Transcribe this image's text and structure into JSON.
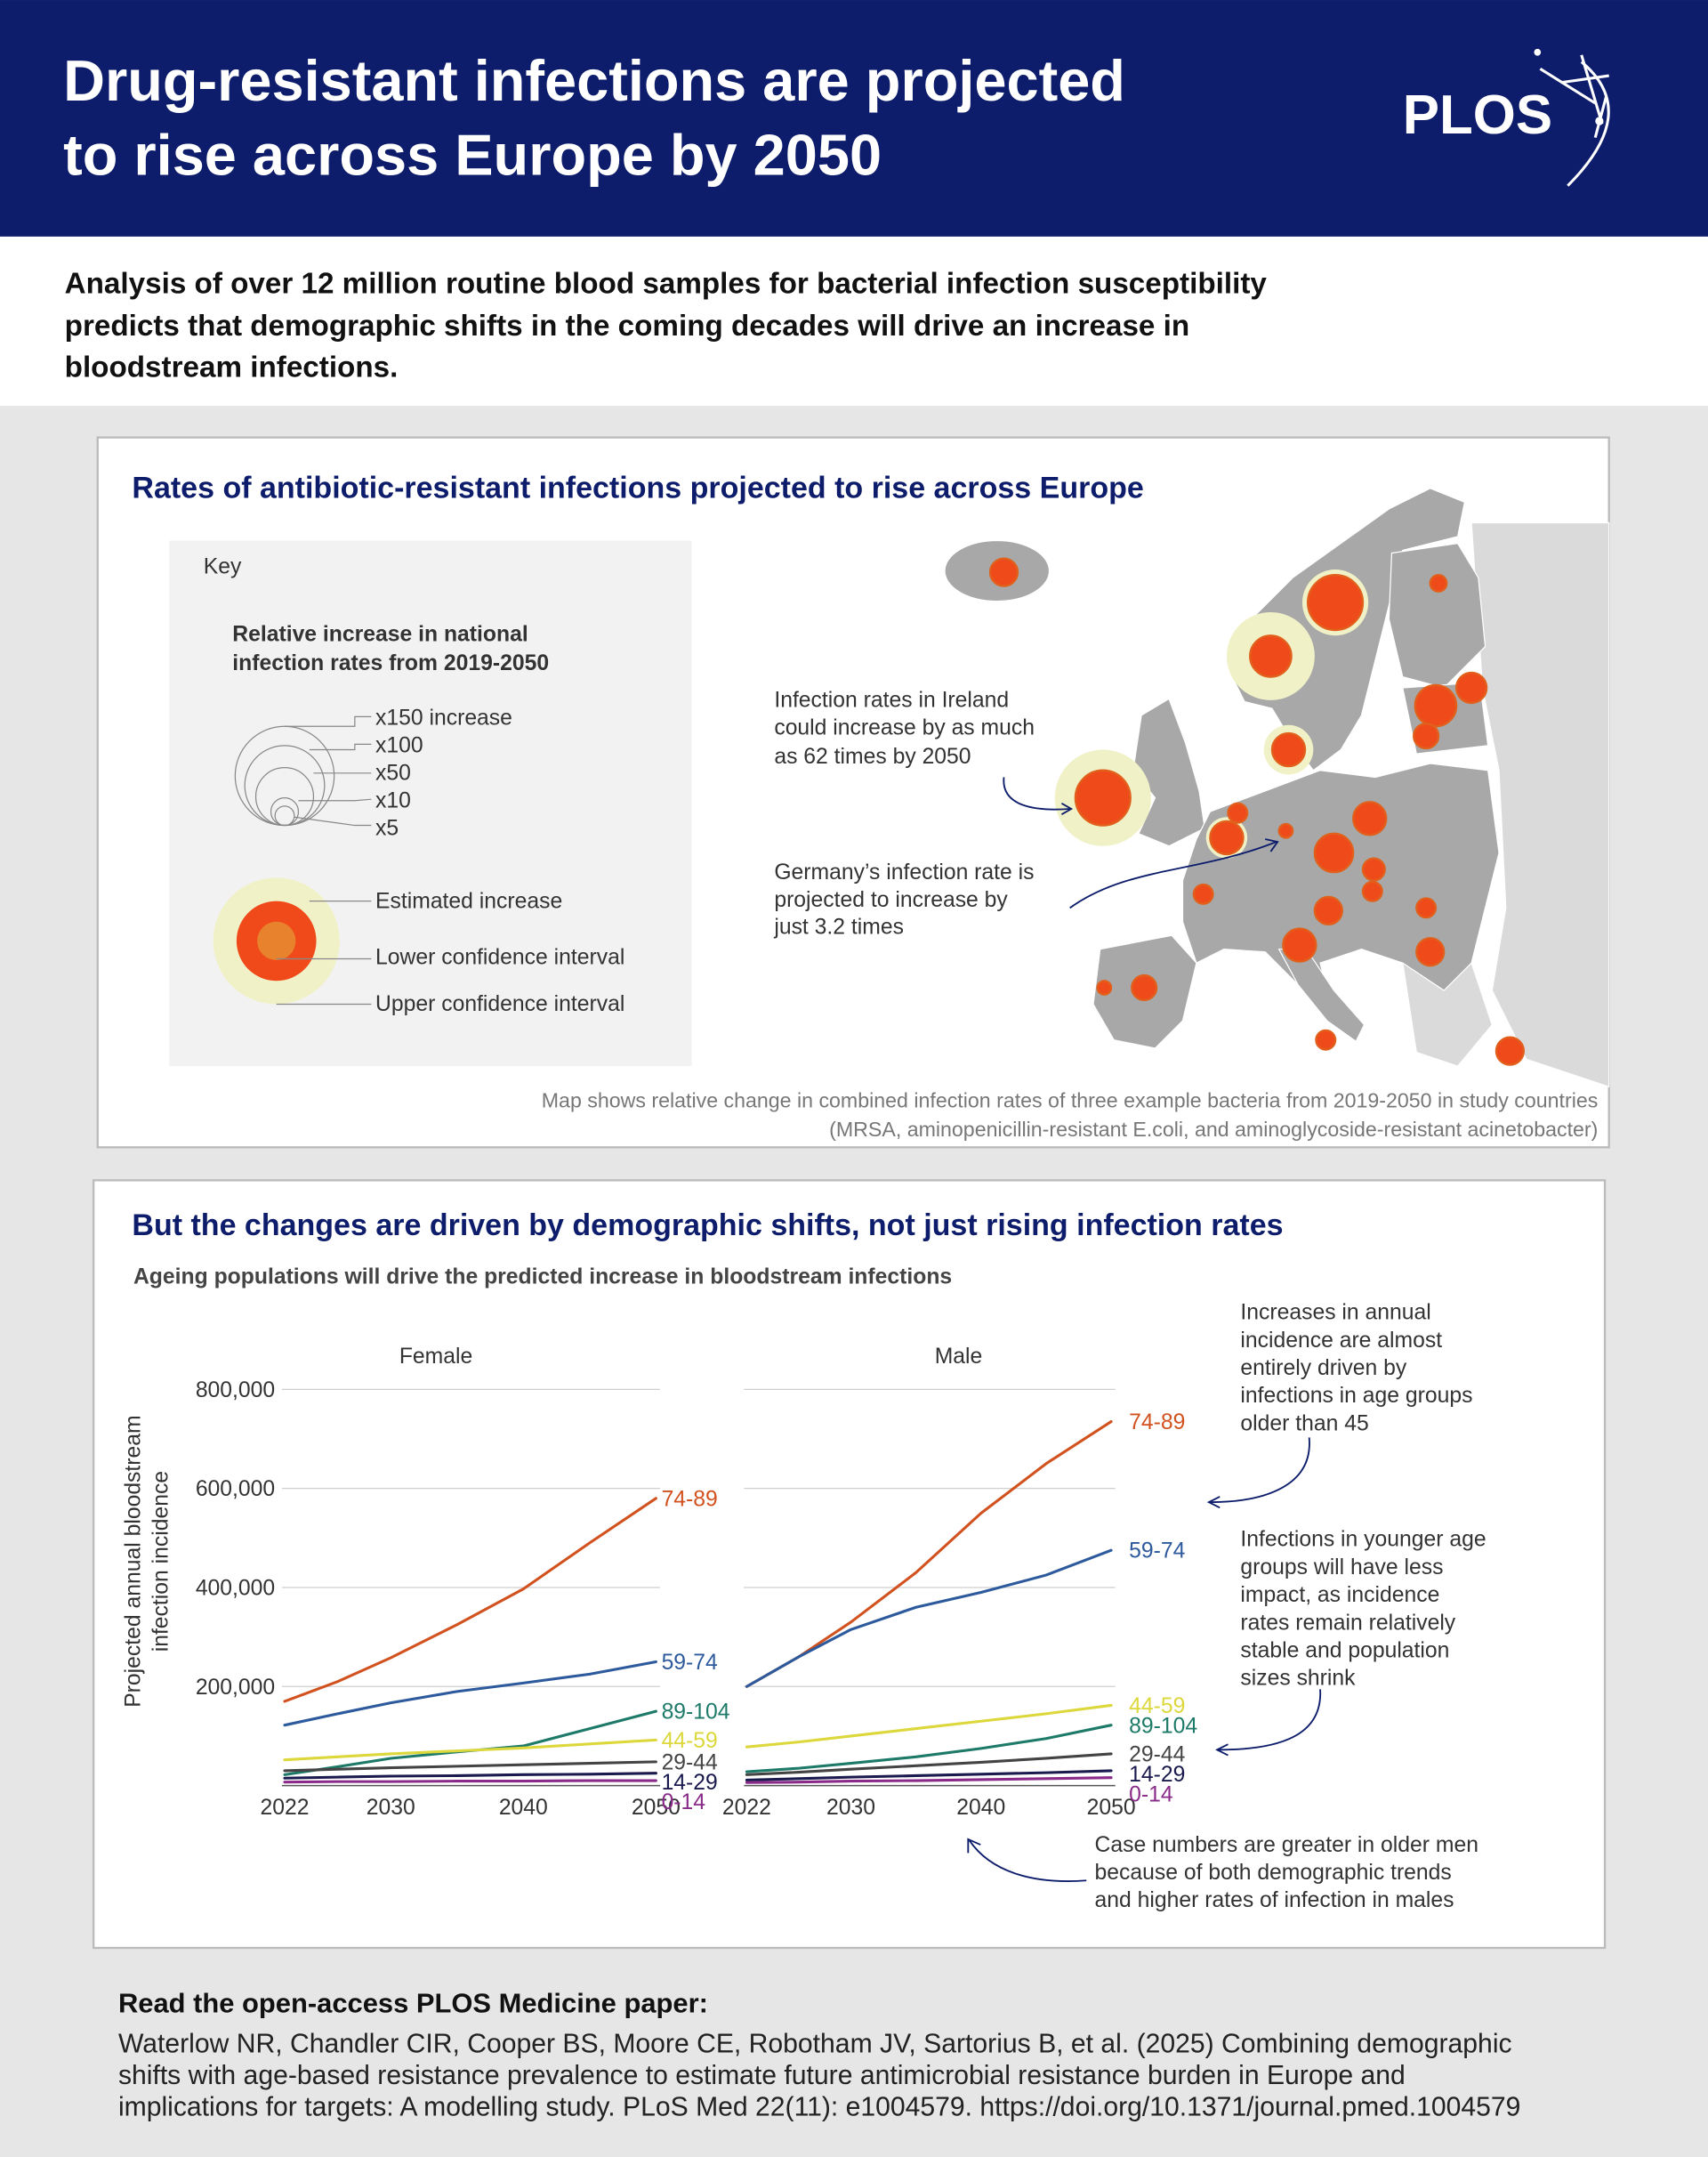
{
  "header": {
    "title": [
      "Drug-resistant infections are projected",
      "to rise across Europe by 2050"
    ],
    "logo": "PLOS"
  },
  "intro": [
    "Analysis of over 12 million routine blood samples for bacterial infection susceptibility",
    "predicts that demographic shifts in the coming decades will drive an increase in",
    "bloodstream infections."
  ],
  "map_panel": {
    "title": "Rates of antibiotic-resistant infections projected to rise across Europe",
    "key": {
      "heading": "Key",
      "subtitle": [
        "Relative increase in national",
        "infection rates from 2019-2050"
      ],
      "sizes": [
        "x150 increase",
        "x100",
        "x50",
        "x10",
        "x5"
      ],
      "markers": [
        "Estimated increase",
        "Lower confidence interval",
        "Upper confidence interval"
      ]
    },
    "annotations": [
      [
        "Infection rates in Ireland",
        "could increase by as much",
        "as 62 times by 2050"
      ],
      [
        "Germany’s infection rate is",
        "projected to increase by",
        "just 3.2 times"
      ]
    ],
    "caption": [
      "Map shows relative change in combined infection rates of three example bacteria from 2019-2050 in study countries",
      "(MRSA, aminopenicillin-resistant E.coli, and aminoglycoside-resistant acinetobacter)"
    ]
  },
  "chart_panel": {
    "title": "But the changes are driven by demographic shifts, not just rising infection rates",
    "subtitle": "Ageing populations will drive the predicted increase in bloodstream infections",
    "y_label": [
      "Projected annual bloodstream",
      "infection incidence"
    ],
    "annotations": [
      [
        "Increases in annual",
        "incidence are almost",
        "entirely driven by",
        "infections in age groups",
        "older than 45"
      ],
      [
        "Infections in younger age",
        "groups will have less",
        "impact, as incidence",
        "rates remain relatively",
        "stable and population",
        "sizes shrink"
      ],
      [
        "Case numbers are greater in older men",
        "because of both demographic trends",
        "and higher rates of infection in males"
      ]
    ]
  },
  "chart_data": [
    {
      "type": "line",
      "title": "Female",
      "x": [
        2022,
        2026,
        2030,
        2035,
        2040,
        2045,
        2050
      ],
      "xlim": [
        2022,
        2050
      ],
      "xticks": [
        2022,
        2030,
        2040,
        2050
      ],
      "ylim": [
        0,
        800000
      ],
      "yticks": [
        {
          "value": 200000,
          "label": "200,000"
        },
        {
          "value": 400000,
          "label": "400,000"
        },
        {
          "value": 600000,
          "label": "600,000"
        },
        {
          "value": 800000,
          "label": "800,000"
        }
      ],
      "grid": true,
      "series": [
        {
          "name": "74-89",
          "color": "#d2521f",
          "values": [
            170000,
            210000,
            258000,
            325000,
            397000,
            490000,
            580000
          ]
        },
        {
          "name": "59-74",
          "color": "#2d5a9c",
          "values": [
            122000,
            145000,
            167000,
            190000,
            207000,
            225000,
            250000
          ]
        },
        {
          "name": "89-104",
          "color": "#1e7a68",
          "values": [
            22000,
            38000,
            55000,
            68000,
            80000,
            115000,
            150000
          ]
        },
        {
          "name": "44-59",
          "color": "#dcd83c",
          "values": [
            52000,
            58000,
            64000,
            70000,
            76000,
            84000,
            92000
          ]
        },
        {
          "name": "29-44",
          "color": "#444444",
          "values": [
            30000,
            33000,
            36000,
            39000,
            42000,
            45000,
            48000
          ]
        },
        {
          "name": "14-29",
          "color": "#1a1a4e",
          "values": [
            15000,
            17000,
            19000,
            20000,
            22000,
            23000,
            25000
          ]
        },
        {
          "name": "0-14",
          "color": "#8a2b8a",
          "values": [
            7000,
            8000,
            8000,
            9000,
            9000,
            10000,
            10000
          ]
        }
      ]
    },
    {
      "type": "line",
      "title": "Male",
      "x": [
        2022,
        2026,
        2030,
        2035,
        2040,
        2045,
        2050
      ],
      "xlim": [
        2022,
        2050
      ],
      "xticks": [
        2022,
        2030,
        2040,
        2050
      ],
      "ylim": [
        0,
        800000
      ],
      "grid": true,
      "series": [
        {
          "name": "74-89",
          "color": "#d2521f",
          "values": [
            200000,
            260000,
            330000,
            430000,
            550000,
            650000,
            735000
          ]
        },
        {
          "name": "59-74",
          "color": "#2d5a9c",
          "values": [
            200000,
            260000,
            315000,
            360000,
            390000,
            425000,
            475000
          ]
        },
        {
          "name": "44-59",
          "color": "#dcd83c",
          "values": [
            78000,
            88000,
            100000,
            115000,
            130000,
            145000,
            162000
          ]
        },
        {
          "name": "89-104",
          "color": "#1e7a68",
          "values": [
            28000,
            35000,
            45000,
            58000,
            75000,
            95000,
            122000
          ]
        },
        {
          "name": "29-44",
          "color": "#444444",
          "values": [
            22000,
            27000,
            33000,
            40000,
            47000,
            55000,
            64000
          ]
        },
        {
          "name": "14-29",
          "color": "#1a1a4e",
          "values": [
            11000,
            14000,
            17000,
            20000,
            23000,
            26000,
            30000
          ]
        },
        {
          "name": "0-14",
          "color": "#8a2b8a",
          "values": [
            6000,
            7000,
            9000,
            10000,
            12000,
            14000,
            16000
          ]
        }
      ]
    }
  ],
  "footer": {
    "heading": "Read the open-access PLOS Medicine paper:",
    "citation": [
      "Waterlow NR, Chandler CIR, Cooper BS, Moore CE, Robotham JV, Sartorius B, et al. (2025) Combining demographic",
      "shifts with age-based resistance prevalence to estimate future antimicrobial resistance burden in Europe and",
      "implications for targets: A modelling study. PLoS Med 22(11): e1004579. https://doi.org/10.1371/journal.pmed.1004579"
    ]
  }
}
